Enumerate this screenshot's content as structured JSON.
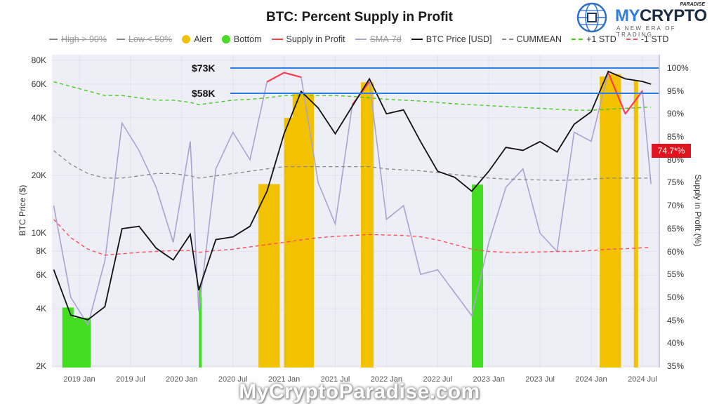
{
  "header": {
    "title": "BTC: Percent Supply in Profit"
  },
  "logo": {
    "word_part1": "MY",
    "word_part2": "CRYPTO",
    "superscript": "PARADISE",
    "tagline": "A NEW ERA OF TRADING",
    "icon": "globe-circuit-icon"
  },
  "legend": [
    {
      "label": "High > 90%",
      "style": "dash-dot",
      "color": "#888888",
      "disabled": true
    },
    {
      "label": "Low < 50%",
      "style": "dash-dot",
      "color": "#888888",
      "disabled": true
    },
    {
      "label": "Alert",
      "style": "dot",
      "color": "#f2c200",
      "disabled": false
    },
    {
      "label": "Bottom",
      "style": "dot",
      "color": "#44dd22",
      "disabled": false
    },
    {
      "label": "Supply in Profit",
      "style": "line",
      "color": "#ff3b4e",
      "disabled": false
    },
    {
      "label": "SMA-7d",
      "style": "line",
      "color": "#a9a3d1",
      "disabled": true
    },
    {
      "label": "BTC Price [USD]",
      "style": "line",
      "color": "#111111",
      "disabled": false
    },
    {
      "label": "CUMMEAN",
      "style": "dash",
      "color": "#888888",
      "disabled": false
    },
    {
      "label": "+1 STD",
      "style": "dash",
      "color": "#44cc22",
      "disabled": false
    },
    {
      "label": "-1 STD",
      "style": "dash",
      "color": "#ff4d5e",
      "disabled": false
    }
  ],
  "axes": {
    "left_label": "BTC Price ($)",
    "right_label": "Supply in Profit (%)",
    "left_ticks": [
      "80K",
      "60K",
      "40K",
      "20K",
      "10K",
      "8K",
      "6K",
      "4K",
      "2K"
    ],
    "right_ticks": [
      "100%",
      "95%",
      "90%",
      "85%",
      "80%",
      "75%",
      "70%",
      "65%",
      "60%",
      "55%",
      "50%",
      "45%",
      "40%",
      "35%"
    ],
    "x_ticks": [
      "2019 Jan",
      "2019 Jul",
      "2020 Jan",
      "2020 Jul",
      "2021 Jan",
      "2021 Jul",
      "2022 Jan",
      "2022 Jul",
      "2023 Jan",
      "2023 Jul",
      "2024 Jan",
      "2024 Jul"
    ]
  },
  "annotations": {
    "upper_level": "$73K",
    "lower_level": "$58K",
    "current_value": "74.7*%",
    "level_color": "#2b7de9"
  },
  "watermark": "MyCryptoParadise.com",
  "chart_data": {
    "type": "line",
    "title": "BTC: Percent Supply in Profit",
    "xlabel": "",
    "ylabel": "BTC Price ($)",
    "y2label": "Supply in Profit (%)",
    "y_scale": "log",
    "ylim": [
      2000,
      80000
    ],
    "y2lim": [
      35,
      100
    ],
    "x_range": [
      "2018-10",
      "2024-08"
    ],
    "grid": true,
    "legend_position": "top",
    "x": [
      "2018-10",
      "2018-12",
      "2019-02",
      "2019-04",
      "2019-06",
      "2019-08",
      "2019-10",
      "2019-12",
      "2020-02",
      "2020-03",
      "2020-05",
      "2020-07",
      "2020-09",
      "2020-11",
      "2021-01",
      "2021-03",
      "2021-05",
      "2021-07",
      "2021-09",
      "2021-11",
      "2022-01",
      "2022-03",
      "2022-05",
      "2022-07",
      "2022-09",
      "2022-11",
      "2023-01",
      "2023-03",
      "2023-05",
      "2023-07",
      "2023-09",
      "2023-11",
      "2024-01",
      "2024-03",
      "2024-05",
      "2024-07",
      "2024-08"
    ],
    "series": [
      {
        "name": "BTC Price [USD]",
        "axis": "left",
        "values": [
          6400,
          3700,
          3500,
          4100,
          10500,
          10800,
          8300,
          7200,
          9800,
          5000,
          9200,
          9500,
          10800,
          16500,
          33000,
          55000,
          45000,
          33000,
          46000,
          64000,
          42000,
          44000,
          30000,
          21000,
          19500,
          16500,
          21000,
          28000,
          27000,
          30000,
          26500,
          37000,
          43000,
          70000,
          64000,
          62000,
          60000
        ]
      },
      {
        "name": "SMA-7d (Supply in Profit %)",
        "axis": "right",
        "values": [
          70,
          50,
          44,
          58,
          88,
          82,
          74,
          62,
          84,
          47,
          78,
          86,
          80,
          97,
          99,
          98,
          75,
          66,
          92,
          97,
          67,
          70,
          55,
          56,
          51,
          46,
          62,
          74,
          78,
          64,
          60,
          86,
          84,
          99,
          90,
          95,
          74.7
        ]
      },
      {
        "name": "CUMMEAN",
        "axis": "right",
        "values": [
          82,
          79,
          77,
          76,
          76,
          76.5,
          77,
          77,
          76.5,
          76,
          76.5,
          77,
          77.5,
          78,
          78.5,
          78.5,
          78.5,
          78.5,
          78.5,
          78.5,
          78,
          77.8,
          77.6,
          77.2,
          76.8,
          76.4,
          76,
          75.8,
          75.7,
          75.6,
          75.5,
          75.6,
          75.8,
          76,
          76,
          76,
          76
        ]
      },
      {
        "name": "+1 STD",
        "axis": "right",
        "values": [
          97,
          96,
          95,
          94,
          94,
          93.5,
          93,
          93,
          92.5,
          92,
          92.5,
          93,
          93.2,
          93.5,
          94,
          94,
          94,
          94,
          93.8,
          93.5,
          93.2,
          93,
          92.8,
          92.5,
          92.2,
          92,
          91.8,
          91.6,
          91.4,
          91.2,
          91,
          90.8,
          90.8,
          91,
          91.2,
          91.4,
          91.5
        ]
      },
      {
        "name": "-1 STD",
        "axis": "right",
        "values": [
          67,
          63,
          60.5,
          59.2,
          59.5,
          59.8,
          60,
          60.2,
          60.2,
          59.8,
          60.2,
          60.5,
          61,
          61.5,
          62,
          62.5,
          63,
          63.3,
          63.5,
          63.7,
          63.6,
          63.5,
          63.2,
          62.5,
          61.5,
          60.5,
          60,
          59.8,
          59.8,
          59.9,
          60,
          60,
          60.2,
          60.5,
          60.6,
          60.8,
          60.9
        ]
      }
    ],
    "horizontal_levels": [
      {
        "label": "$73K",
        "value": 73000,
        "axis": "left"
      },
      {
        "label": "$58K",
        "value": 58000,
        "axis": "left"
      }
    ],
    "alert_bands": [
      [
        "2020-10",
        "2020-12"
      ],
      [
        "2021-01",
        "2021-02"
      ],
      [
        "2021-02",
        "2021-04"
      ],
      [
        "2021-10",
        "2021-11"
      ],
      [
        "2024-02",
        "2024-03"
      ],
      [
        "2024-03",
        "2024-04"
      ],
      [
        "2024-06",
        "2024-06"
      ]
    ],
    "bottom_bands": [
      [
        "2018-11",
        "2018-12"
      ],
      [
        "2018-12",
        "2019-02"
      ],
      [
        "2020-03",
        "2020-03"
      ],
      [
        "2022-11",
        "2022-12"
      ]
    ],
    "current_supply_in_profit": 74.7
  }
}
